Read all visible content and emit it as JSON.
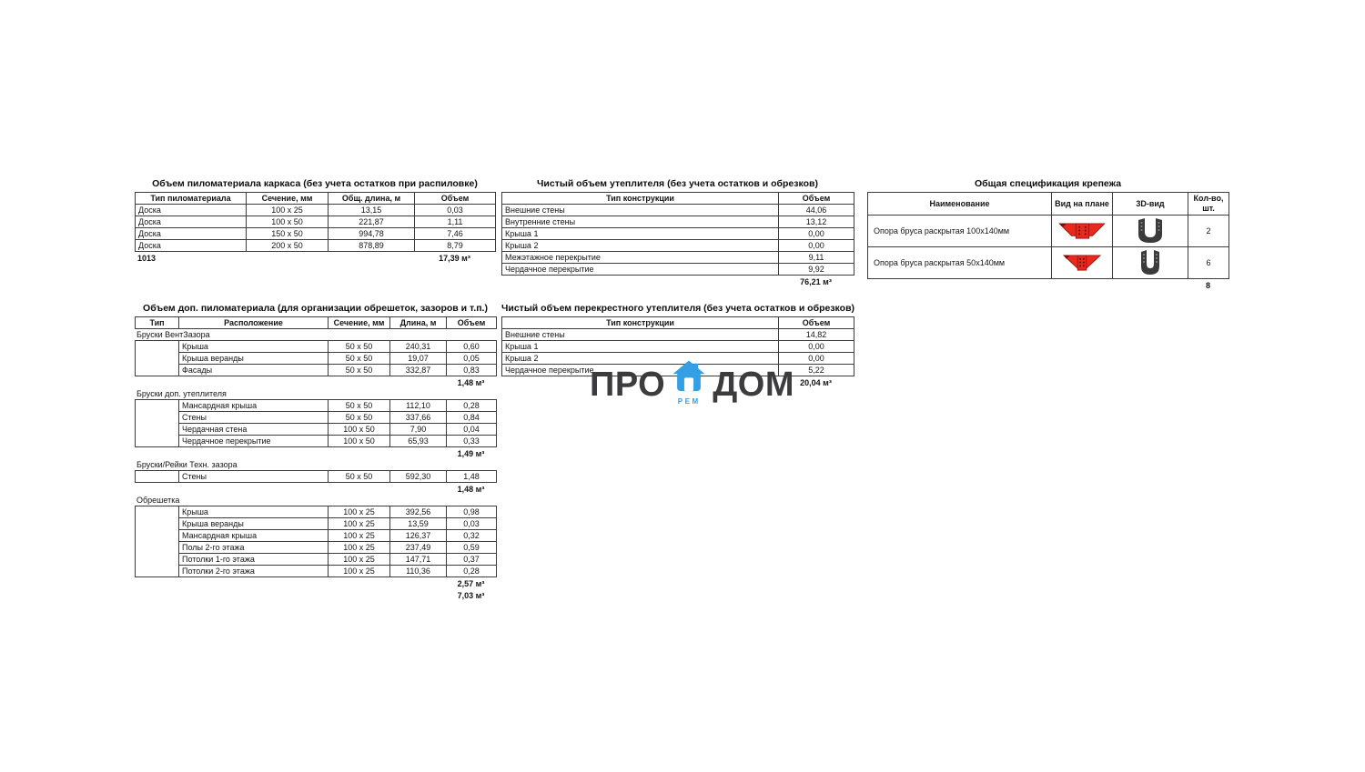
{
  "colors": {
    "icon_red": "#E8291C",
    "icon_red_dark": "#9E1410",
    "bracket_gray": "#3B3B3B",
    "logo_blue": "#33A0E6",
    "logo_text": "#3C3C3E"
  },
  "logo": {
    "left": "ПРО",
    "right": "ДОМ",
    "sub": "РЕМ",
    "house_icon": "house-icon"
  },
  "frame_lumber": {
    "title": "Объем пиломатериала каркаса (без учета остатков при распиловке)",
    "headers": [
      "Тип пиломатериала",
      "Сечение, мм",
      "Общ. длина, м",
      "Объем"
    ],
    "rows": [
      [
        "Доска",
        "100 x 25",
        "13,15",
        "0,03"
      ],
      [
        "Доска",
        "100 x 50",
        "221,87",
        "1,11"
      ],
      [
        "Доска",
        "150 x 50",
        "994,78",
        "7,46"
      ],
      [
        "Доска",
        "200 x 50",
        "878,89",
        "8,79"
      ]
    ],
    "footer_count": "1013",
    "footer_total": "17,39 м³"
  },
  "insulation": {
    "title": "Чистый объем утеплителя (без учета остатков и обрезков)",
    "headers": [
      "Тип конструкции",
      "Объем"
    ],
    "rows": [
      [
        "Внешние стены",
        "44,06"
      ],
      [
        "Внутренние стены",
        "13,12"
      ],
      [
        "Крыша 1",
        "0,00"
      ],
      [
        "Крыша 2",
        "0,00"
      ],
      [
        "Межэтажное перекрытие",
        "9,11"
      ],
      [
        "Чердачное перекрытие",
        "9,92"
      ]
    ],
    "total": "76,21 м³"
  },
  "fasteners": {
    "title": "Общая спецификация крепежа",
    "headers": [
      "Наименование",
      "Вид на плане",
      "3D-вид",
      "Кол-во, шт."
    ],
    "rows": [
      {
        "name": "Опора бруса раскрытая 100х140мм",
        "plan_icon": "trapezoid-plan-icon",
        "view_icon": "u-bracket-icon",
        "qty": "2"
      },
      {
        "name": "Опора бруса раскрытая 50х140мм",
        "plan_icon": "trapezoid-plan-icon",
        "view_icon": "u-bracket-icon",
        "qty": "6"
      }
    ],
    "total": "8"
  },
  "extra_lumber": {
    "title": "Объем доп. пиломатериала (для организации обрешеток, зазоров и т.п.)",
    "headers": [
      "Тип",
      "Расположение",
      "Сечение, мм",
      "Длина, м",
      "Объем"
    ],
    "groups": [
      {
        "name": "Бруски ВентЗазора",
        "rows": [
          [
            "Крыша",
            "50 x 50",
            "240,31",
            "0,60"
          ],
          [
            "Крыша веранды",
            "50 x 50",
            "19,07",
            "0,05"
          ],
          [
            "Фасады",
            "50 x 50",
            "332,87",
            "0,83"
          ]
        ],
        "subtotal": "1,48 м³"
      },
      {
        "name": "Бруски доп. утеплителя",
        "rows": [
          [
            "Мансардная крыша",
            "50 x 50",
            "112,10",
            "0,28"
          ],
          [
            "Стены",
            "50 x 50",
            "337,66",
            "0,84"
          ],
          [
            "Чердачная стена",
            "100 x 50",
            "7,90",
            "0,04"
          ],
          [
            "Чердачное перекрытие",
            "100 x 50",
            "65,93",
            "0,33"
          ]
        ],
        "subtotal": "1,49 м³"
      },
      {
        "name": "Бруски/Рейки Техн. зазора",
        "rows": [
          [
            "Стены",
            "50 x 50",
            "592,30",
            "1,48"
          ]
        ],
        "subtotal": "1,48 м³"
      },
      {
        "name": "Обрешетка",
        "rows": [
          [
            "Крыша",
            "100 x 25",
            "392,56",
            "0,98"
          ],
          [
            "Крыша веранды",
            "100 x 25",
            "13,59",
            "0,03"
          ],
          [
            "Мансардная крыша",
            "100 x 25",
            "126,37",
            "0,32"
          ],
          [
            "Полы 2-го этажа",
            "100 x 25",
            "237,49",
            "0,59"
          ],
          [
            "Потолки 1-го этажа",
            "100 x 25",
            "147,71",
            "0,37"
          ],
          [
            "Потолки 2-го этажа",
            "100 x 25",
            "110,36",
            "0,28"
          ]
        ],
        "subtotal": "2,57 м³"
      }
    ],
    "total": "7,03 м³"
  },
  "cross_insulation": {
    "title": "Чистый объем перекрестного утеплителя (без учета остатков и обрезков)",
    "headers": [
      "Тип конструкции",
      "Объем"
    ],
    "rows": [
      [
        "Внешние стены",
        "14,82"
      ],
      [
        "Крыша 1",
        "0,00"
      ],
      [
        "Крыша 2",
        "0,00"
      ],
      [
        "Чердачное перекрытие",
        "5,22"
      ]
    ],
    "total": "20,04 м³"
  }
}
